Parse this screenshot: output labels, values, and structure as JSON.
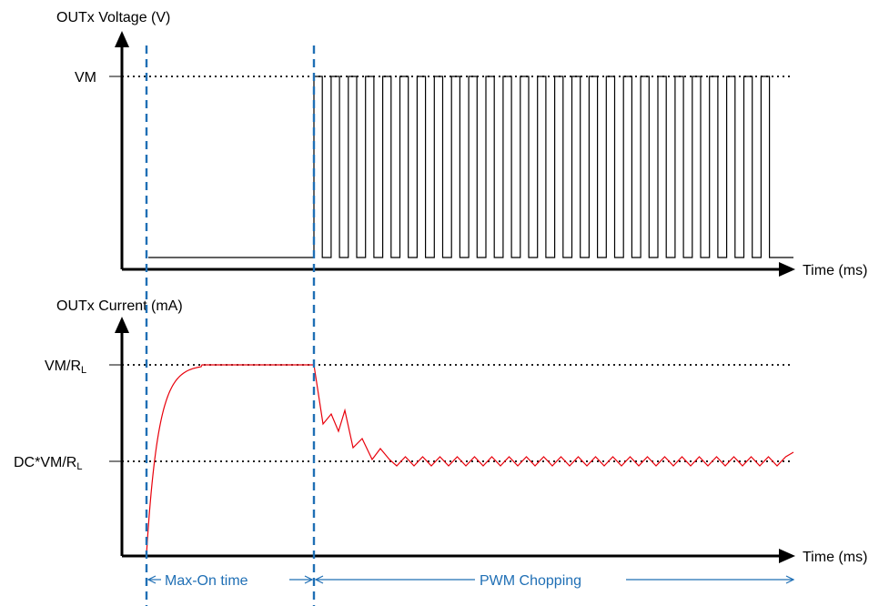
{
  "top_plot": {
    "y_axis_title": "OUTx Voltage (V)",
    "x_axis_title": "Time (ms)",
    "level_label": "VM"
  },
  "bottom_plot": {
    "y_axis_title": "OUTx Current (mA)",
    "x_axis_title": "Time (ms)",
    "upper_level": {
      "prefix": "VM/R",
      "subscript": "L"
    },
    "lower_level": {
      "prefix": "DC*VM/R",
      "subscript": "L"
    }
  },
  "phases": {
    "max_on": "Max-On time",
    "pwm": "PWM Chopping"
  },
  "colors": {
    "axis": "#000000",
    "current_trace": "#e8000b",
    "marker": "#1f6fb5",
    "voltage_trace": "#000000"
  }
}
